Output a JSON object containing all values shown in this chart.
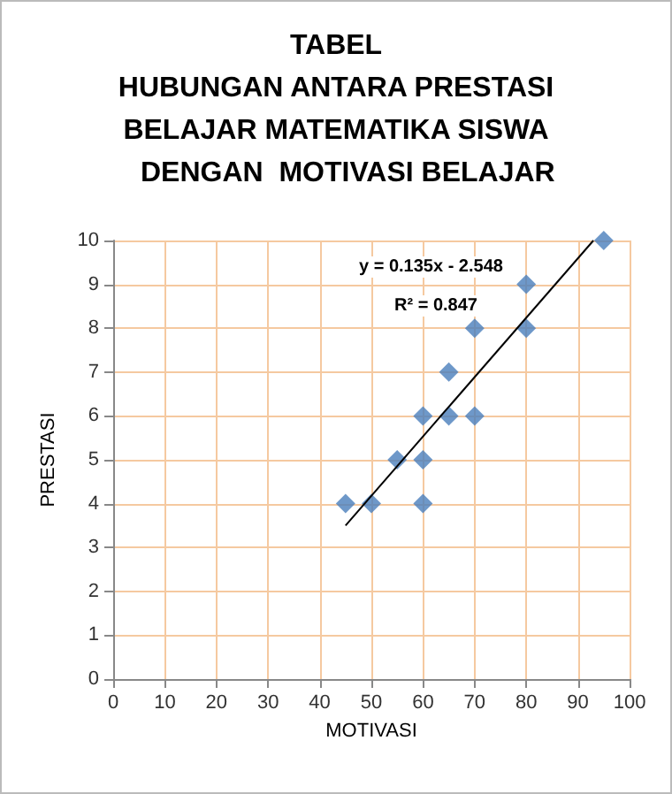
{
  "chart_data": {
    "type": "scatter",
    "title": "TABEL\nHUBUNGAN ANTARA PRESTASI\nBELAJAR MATEMATIKA SISWA\n   DENGAN  MOTIVASI BELAJAR",
    "xlabel": "MOTIVASI",
    "ylabel": "PRESTASI",
    "annotations": [
      "y = 0.135x - 2.548",
      "R² = 0.847"
    ],
    "series": [
      {
        "color": "#4a7ebb",
        "marker": "diamond",
        "x": [
          45,
          50,
          60,
          55,
          60,
          60,
          65,
          70,
          65,
          70,
          80,
          80,
          95
        ],
        "values": [
          4,
          4,
          4,
          5,
          5,
          6,
          6,
          6,
          7,
          8,
          8,
          9,
          10
        ]
      },
      {
        "type": "line",
        "color": "#000000",
        "marker": "none",
        "line_style": "solid",
        "x": [
          45,
          93
        ],
        "values": [
          3.5,
          10
        ]
      }
    ],
    "xlim": [
      0,
      100
    ],
    "xticks": [
      0,
      10,
      20,
      30,
      40,
      50,
      60,
      70,
      80,
      90,
      100
    ],
    "ylim": [
      0,
      10
    ],
    "yticks": [
      0,
      1,
      2,
      3,
      4,
      5,
      6,
      7,
      8,
      9,
      10
    ],
    "grid": true
  }
}
